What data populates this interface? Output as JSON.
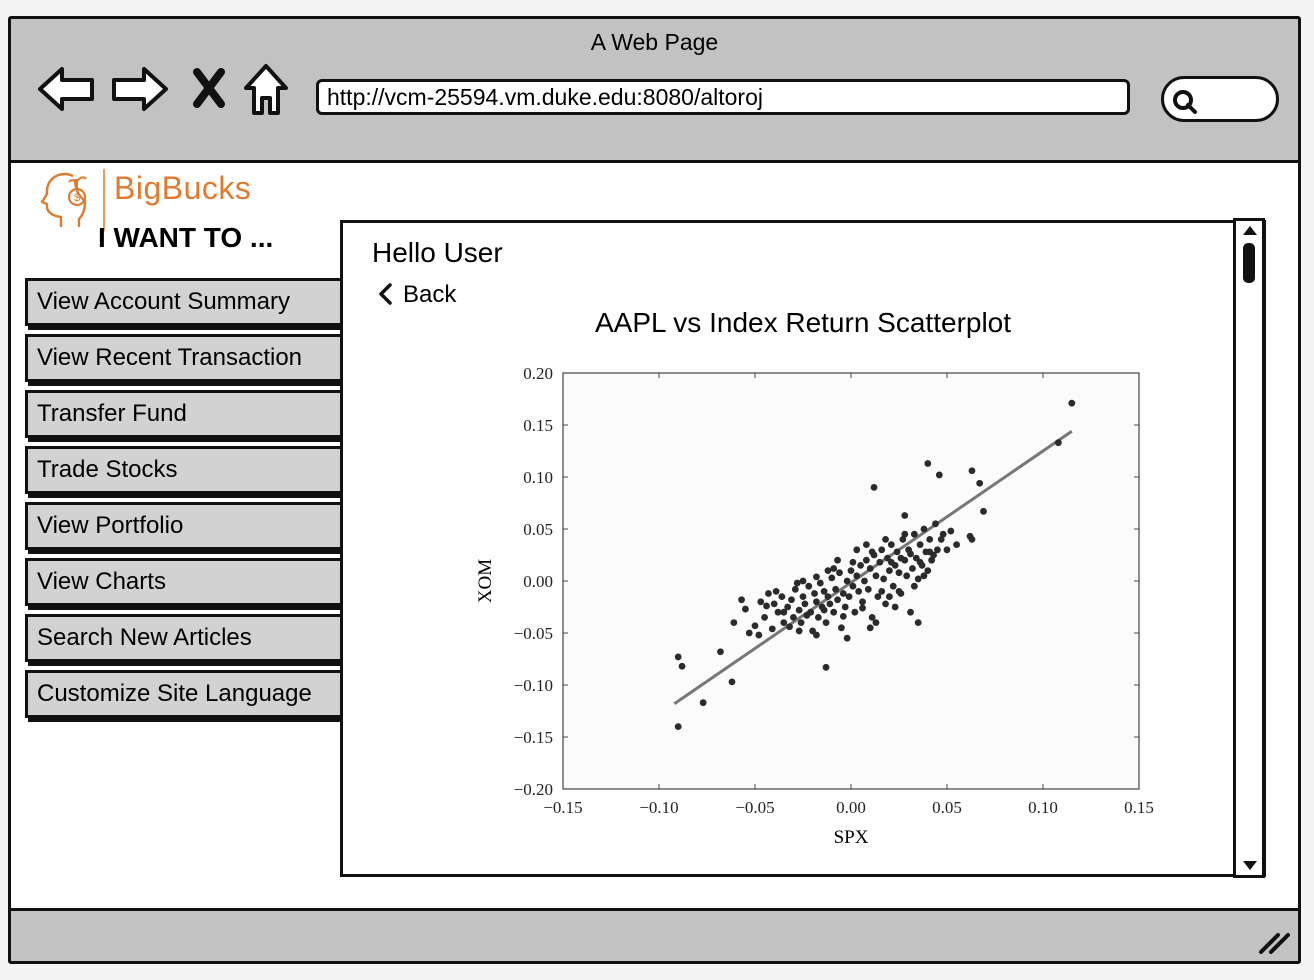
{
  "window": {
    "title": "A Web Page",
    "url": "http://vcm-25594.vm.duke.edu:8080/altoroj",
    "icons": [
      "back-arrow-icon",
      "forward-arrow-icon",
      "close-x-icon",
      "home-icon",
      "search-icon",
      "resize-grip-icon"
    ]
  },
  "brand": {
    "name": "BigBucks",
    "color": "#e07a2f",
    "logo_icon": "head-coin-icon"
  },
  "sidebar": {
    "heading": "I WANT TO ...",
    "items": [
      {
        "label": "View Account Summary"
      },
      {
        "label": "View Recent Transaction"
      },
      {
        "label": "Transfer Fund"
      },
      {
        "label": "Trade Stocks"
      },
      {
        "label": "View Portfolio"
      },
      {
        "label": "View Charts"
      },
      {
        "label": "Search New Articles"
      },
      {
        "label": "Customize Site Language"
      }
    ]
  },
  "main": {
    "greeting": "Hello User",
    "back_label": "Back",
    "chart_heading": "AAPL vs Index Return Scatterplot"
  },
  "chart_data": {
    "type": "scatter",
    "title": "",
    "xlabel": "SPX",
    "ylabel": "XOM",
    "xlim": [
      -0.15,
      0.15
    ],
    "ylim": [
      -0.2,
      0.2
    ],
    "x_ticks": [
      "−0.15",
      "−0.10",
      "−0.05",
      "0.00",
      "0.05",
      "0.10",
      "0.15"
    ],
    "y_ticks": [
      "0.20",
      "0.15",
      "0.10",
      "0.05",
      "0.00",
      "−0.05",
      "−0.10",
      "−0.15",
      "−0.20"
    ],
    "x_tick_values": [
      -0.15,
      -0.1,
      -0.05,
      0.0,
      0.05,
      0.1,
      0.15
    ],
    "y_tick_values": [
      0.2,
      0.15,
      0.1,
      0.05,
      0.0,
      -0.05,
      -0.1,
      -0.15,
      -0.2
    ],
    "grid": false,
    "point_color": "#2b2b2b",
    "fit_line": {
      "x": [
        -0.092,
        0.115
      ],
      "y": [
        -0.118,
        0.144
      ],
      "color": "#777777"
    },
    "points": [
      [
        -0.09,
        -0.14
      ],
      [
        -0.09,
        -0.073
      ],
      [
        -0.088,
        -0.082
      ],
      [
        -0.077,
        -0.117
      ],
      [
        -0.068,
        -0.068
      ],
      [
        -0.062,
        -0.097
      ],
      [
        -0.061,
        -0.04
      ],
      [
        -0.057,
        -0.018
      ],
      [
        -0.055,
        -0.027
      ],
      [
        -0.053,
        -0.05
      ],
      [
        -0.05,
        -0.043
      ],
      [
        -0.048,
        -0.052
      ],
      [
        -0.047,
        -0.02
      ],
      [
        -0.045,
        -0.035
      ],
      [
        -0.043,
        -0.012
      ],
      [
        -0.041,
        -0.046
      ],
      [
        -0.04,
        -0.022
      ],
      [
        -0.038,
        -0.03
      ],
      [
        -0.036,
        -0.015
      ],
      [
        -0.035,
        -0.04
      ],
      [
        -0.033,
        -0.025
      ],
      [
        -0.031,
        -0.018
      ],
      [
        -0.03,
        -0.035
      ],
      [
        -0.029,
        -0.008
      ],
      [
        -0.027,
        -0.028
      ],
      [
        -0.026,
        -0.04
      ],
      [
        -0.025,
        -0.015
      ],
      [
        -0.024,
        -0.022
      ],
      [
        -0.022,
        -0.005
      ],
      [
        -0.021,
        -0.03
      ],
      [
        -0.02,
        -0.048
      ],
      [
        -0.019,
        -0.012
      ],
      [
        -0.018,
        -0.02
      ],
      [
        -0.017,
        -0.035
      ],
      [
        -0.016,
        -0.002
      ],
      [
        -0.015,
        -0.025
      ],
      [
        -0.014,
        -0.01
      ],
      [
        -0.013,
        -0.04
      ],
      [
        -0.012,
        -0.015
      ],
      [
        -0.011,
        -0.022
      ],
      [
        -0.01,
        0.003
      ],
      [
        -0.009,
        -0.03
      ],
      [
        -0.008,
        -0.008
      ],
      [
        -0.007,
        -0.018
      ],
      [
        -0.006,
        0.008
      ],
      [
        -0.005,
        -0.045
      ],
      [
        -0.004,
        -0.012
      ],
      [
        -0.003,
        -0.025
      ],
      [
        -0.002,
        0.0
      ],
      [
        -0.001,
        -0.015
      ],
      [
        0.0,
        0.01
      ],
      [
        0.001,
        -0.005
      ],
      [
        0.002,
        -0.03
      ],
      [
        0.003,
        0.005
      ],
      [
        0.004,
        -0.01
      ],
      [
        0.005,
        0.015
      ],
      [
        0.006,
        -0.02
      ],
      [
        0.007,
        0.0
      ],
      [
        0.008,
        0.02
      ],
      [
        0.009,
        -0.008
      ],
      [
        0.01,
        0.012
      ],
      [
        0.011,
        -0.035
      ],
      [
        0.012,
        0.025
      ],
      [
        0.013,
        0.005
      ],
      [
        0.014,
        -0.015
      ],
      [
        0.015,
        0.018
      ],
      [
        0.016,
        0.03
      ],
      [
        0.017,
        0.002
      ],
      [
        0.018,
        -0.022
      ],
      [
        0.019,
        0.022
      ],
      [
        0.02,
        0.01
      ],
      [
        0.021,
        0.035
      ],
      [
        0.022,
        -0.005
      ],
      [
        0.023,
        0.015
      ],
      [
        0.024,
        0.028
      ],
      [
        0.025,
        0.008
      ],
      [
        0.026,
        -0.012
      ],
      [
        0.027,
        0.04
      ],
      [
        0.028,
        0.02
      ],
      [
        0.029,
        0.005
      ],
      [
        0.03,
        0.03
      ],
      [
        0.031,
        -0.03
      ],
      [
        0.032,
        0.012
      ],
      [
        0.033,
        0.045
      ],
      [
        0.034,
        0.022
      ],
      [
        0.035,
        0.002
      ],
      [
        0.036,
        0.035
      ],
      [
        0.037,
        0.015
      ],
      [
        0.038,
        0.05
      ],
      [
        0.039,
        0.028
      ],
      [
        0.04,
        0.01
      ],
      [
        0.041,
        0.04
      ],
      [
        0.042,
        0.02
      ],
      [
        0.044,
        0.055
      ],
      [
        0.045,
        0.03
      ],
      [
        -0.044,
        -0.024
      ],
      [
        -0.039,
        -0.01
      ],
      [
        -0.032,
        -0.044
      ],
      [
        -0.028,
        -0.002
      ],
      [
        -0.023,
        -0.033
      ],
      [
        -0.018,
        0.004
      ],
      [
        -0.014,
        -0.028
      ],
      [
        -0.009,
        0.012
      ],
      [
        -0.004,
        -0.034
      ],
      [
        0.001,
        0.018
      ],
      [
        0.006,
        -0.026
      ],
      [
        0.011,
        0.028
      ],
      [
        0.016,
        -0.01
      ],
      [
        0.021,
        0.018
      ],
      [
        0.026,
        0.022
      ],
      [
        0.031,
        0.026
      ],
      [
        0.036,
        0.018
      ],
      [
        0.041,
        0.028
      ],
      [
        0.003,
        0.03
      ],
      [
        -0.007,
        0.02
      ],
      [
        0.008,
        0.035
      ],
      [
        -0.012,
        0.01
      ],
      [
        0.018,
        0.04
      ],
      [
        0.028,
        0.045
      ],
      [
        -0.025,
        0.0
      ],
      [
        0.013,
        -0.04
      ],
      [
        0.023,
        -0.025
      ],
      [
        -0.035,
        -0.03
      ],
      [
        0.033,
        -0.005
      ],
      [
        0.038,
        0.005
      ],
      [
        -0.002,
        -0.055
      ],
      [
        -0.018,
        -0.052
      ],
      [
        0.01,
        -0.045
      ],
      [
        -0.027,
        -0.048
      ],
      [
        0.02,
        -0.015
      ],
      [
        0.012,
        0.09
      ],
      [
        0.028,
        0.063
      ],
      [
        0.04,
        0.113
      ],
      [
        0.046,
        0.102
      ],
      [
        0.052,
        0.048
      ],
      [
        0.062,
        0.043
      ],
      [
        0.063,
        0.04
      ],
      [
        0.063,
        0.106
      ],
      [
        0.067,
        0.094
      ],
      [
        0.069,
        0.067
      ],
      [
        0.047,
        0.04
      ],
      [
        0.055,
        0.035
      ],
      [
        0.05,
        0.03
      ],
      [
        0.043,
        0.025
      ],
      [
        0.048,
        0.045
      ],
      [
        0.108,
        0.133
      ],
      [
        0.115,
        0.171
      ],
      [
        -0.013,
        -0.083
      ],
      [
        0.035,
        -0.04
      ],
      [
        0.025,
        -0.01
      ]
    ]
  }
}
